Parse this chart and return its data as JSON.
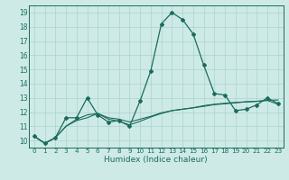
{
  "xlabel": "Humidex (Indice chaleur)",
  "bg_color": "#ceeae6",
  "grid_color": "#aad4ce",
  "line_color": "#1a6b5e",
  "xlim": [
    -0.5,
    23.5
  ],
  "ylim": [
    9.5,
    19.5
  ],
  "yticks": [
    10,
    11,
    12,
    13,
    14,
    15,
    16,
    17,
    18,
    19
  ],
  "xticks": [
    0,
    1,
    2,
    3,
    4,
    5,
    6,
    7,
    8,
    9,
    10,
    11,
    12,
    13,
    14,
    15,
    16,
    17,
    18,
    19,
    20,
    21,
    22,
    23
  ],
  "xtick_labels": [
    "0",
    "1",
    "2",
    "3",
    "4",
    "5",
    "6",
    "7",
    "8",
    "9",
    "10",
    "11",
    "12",
    "13",
    "14",
    "15",
    "16",
    "17",
    "18",
    "19",
    "20",
    "21",
    "22",
    "23"
  ],
  "series1_x": [
    0,
    1,
    2,
    3,
    4,
    5,
    6,
    7,
    8,
    9,
    10,
    11,
    12,
    13,
    14,
    15,
    16,
    17,
    18,
    19,
    20,
    21,
    22,
    23
  ],
  "series1_y": [
    10.3,
    9.8,
    10.2,
    11.6,
    11.6,
    13.0,
    11.8,
    11.3,
    11.4,
    11.0,
    12.8,
    14.9,
    18.2,
    19.0,
    18.5,
    17.5,
    15.3,
    13.3,
    13.2,
    12.1,
    12.2,
    12.5,
    13.0,
    12.6
  ],
  "series2_x": [
    0,
    1,
    2,
    3,
    4,
    5,
    6,
    7,
    8,
    9,
    10,
    11,
    12,
    13,
    14,
    15,
    16,
    17,
    18,
    19,
    20,
    21,
    22,
    23
  ],
  "series2_y": [
    10.3,
    9.8,
    10.2,
    11.0,
    11.5,
    11.8,
    11.9,
    11.6,
    11.5,
    11.3,
    11.5,
    11.7,
    11.95,
    12.1,
    12.2,
    12.3,
    12.45,
    12.55,
    12.62,
    12.68,
    12.72,
    12.75,
    12.82,
    12.85
  ],
  "series3_x": [
    0,
    1,
    2,
    3,
    4,
    5,
    6,
    7,
    8,
    9,
    10,
    11,
    12,
    13,
    14,
    15,
    16,
    17,
    18,
    19,
    20,
    21,
    22,
    23
  ],
  "series3_y": [
    10.3,
    9.8,
    10.2,
    11.0,
    11.4,
    11.6,
    11.9,
    11.5,
    11.35,
    11.1,
    11.35,
    11.65,
    11.9,
    12.1,
    12.2,
    12.3,
    12.4,
    12.52,
    12.58,
    12.65,
    12.72,
    12.76,
    12.82,
    12.55
  ]
}
